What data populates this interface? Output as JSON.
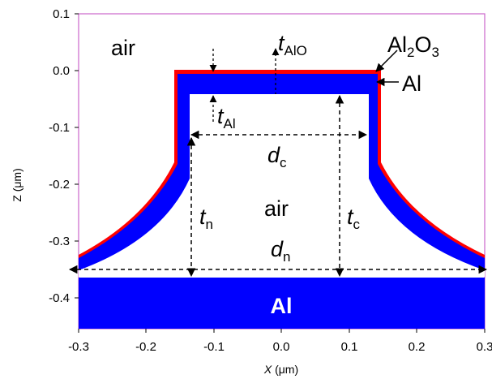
{
  "axes": {
    "x_label_var": "X",
    "x_label_unit": " (μm)",
    "y_label": "Z (μm)",
    "x_ticks": [
      "-0.3",
      "-0.2",
      "-0.1",
      "0.0",
      "0.1",
      "0.2",
      "0.3"
    ],
    "y_ticks": [
      "0.1",
      "0.0",
      "-0.1",
      "-0.2",
      "-0.3",
      "-0.4"
    ]
  },
  "labels": {
    "air_top": "air",
    "air_center": "air",
    "al_oxide_base": "Al",
    "al_oxide_sub2": "2",
    "al_oxide_o": "O",
    "al_oxide_sub3": "3",
    "al_layer": "Al",
    "al_substrate": "Al",
    "t_alo_var": "t",
    "t_alo_sub": "AlO",
    "t_al_var": "t",
    "t_al_sub": "Al",
    "d_c_var": "d",
    "d_c_sub": "c",
    "t_n_var": "t",
    "t_n_sub": "n",
    "t_c_var": "t",
    "t_c_sub": "c",
    "d_n_var": "d",
    "d_n_sub": "n"
  },
  "colors": {
    "aluminum": "#0000ff",
    "alumina": "#ff0000",
    "frame": "#cc66cc"
  }
}
